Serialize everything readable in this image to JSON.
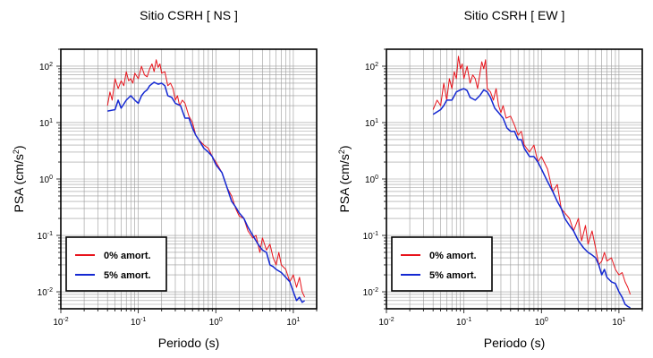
{
  "chart_data": [
    {
      "type": "line",
      "title": "Sitio CSRH [ NS ]",
      "xlabel": "Periodo (s)",
      "ylabel": "PSA (cm/s²)",
      "ylabel_main": "PSA (cm/s",
      "ylabel_sup": "2",
      "ylabel_end": ")",
      "xscale": "log",
      "yscale": "log",
      "xlim": [
        0.01,
        20
      ],
      "ylim": [
        0.005,
        200
      ],
      "grid": true,
      "legend_position": "bottom-left",
      "xticks": [
        {
          "base": "10",
          "exp": "-2"
        },
        {
          "base": "10",
          "exp": "-1"
        },
        {
          "base": "10",
          "exp": "0"
        },
        {
          "base": "10",
          "exp": "1"
        }
      ],
      "yticks": [
        {
          "base": "10",
          "exp": "-2"
        },
        {
          "base": "10",
          "exp": "-1"
        },
        {
          "base": "10",
          "exp": "0"
        },
        {
          "base": "10",
          "exp": "1"
        },
        {
          "base": "10",
          "exp": "2"
        }
      ],
      "series": [
        {
          "name": "0% amort.",
          "color": "#e8141c",
          "points": [
            [
              0.04,
              20
            ],
            [
              0.043,
              35
            ],
            [
              0.046,
              25
            ],
            [
              0.05,
              60
            ],
            [
              0.055,
              40
            ],
            [
              0.06,
              55
            ],
            [
              0.065,
              45
            ],
            [
              0.07,
              80
            ],
            [
              0.075,
              55
            ],
            [
              0.08,
              60
            ],
            [
              0.085,
              50
            ],
            [
              0.09,
              75
            ],
            [
              0.1,
              60
            ],
            [
              0.11,
              100
            ],
            [
              0.12,
              70
            ],
            [
              0.13,
              65
            ],
            [
              0.14,
              90
            ],
            [
              0.15,
              110
            ],
            [
              0.16,
              80
            ],
            [
              0.17,
              130
            ],
            [
              0.18,
              95
            ],
            [
              0.19,
              110
            ],
            [
              0.2,
              75
            ],
            [
              0.22,
              80
            ],
            [
              0.24,
              45
            ],
            [
              0.26,
              50
            ],
            [
              0.28,
              40
            ],
            [
              0.3,
              25
            ],
            [
              0.32,
              30
            ],
            [
              0.34,
              20
            ],
            [
              0.37,
              25
            ],
            [
              0.4,
              22
            ],
            [
              0.45,
              13
            ],
            [
              0.5,
              10
            ],
            [
              0.55,
              6
            ],
            [
              0.6,
              5
            ],
            [
              0.7,
              4
            ],
            [
              0.8,
              3.5
            ],
            [
              0.9,
              2.5
            ],
            [
              1.0,
              2
            ],
            [
              1.2,
              1.3
            ],
            [
              1.4,
              0.7
            ],
            [
              1.6,
              0.5
            ],
            [
              1.8,
              0.3
            ],
            [
              2.0,
              0.22
            ],
            [
              2.3,
              0.2
            ],
            [
              2.6,
              0.12
            ],
            [
              3.0,
              0.09
            ],
            [
              3.3,
              0.1
            ],
            [
              3.7,
              0.05
            ],
            [
              4.0,
              0.09
            ],
            [
              4.5,
              0.055
            ],
            [
              5.0,
              0.07
            ],
            [
              5.5,
              0.04
            ],
            [
              6.0,
              0.03
            ],
            [
              6.5,
              0.05
            ],
            [
              7.0,
              0.03
            ],
            [
              8.0,
              0.025
            ],
            [
              9.0,
              0.015
            ],
            [
              10.0,
              0.02
            ],
            [
              11.0,
              0.012
            ],
            [
              12.0,
              0.018
            ],
            [
              13.0,
              0.01
            ],
            [
              14.0,
              0.008
            ]
          ]
        },
        {
          "name": "5% amort.",
          "color": "#1428d2",
          "points": [
            [
              0.04,
              16
            ],
            [
              0.05,
              17
            ],
            [
              0.055,
              25
            ],
            [
              0.06,
              18
            ],
            [
              0.07,
              25
            ],
            [
              0.08,
              30
            ],
            [
              0.09,
              25
            ],
            [
              0.1,
              22
            ],
            [
              0.11,
              30
            ],
            [
              0.12,
              35
            ],
            [
              0.13,
              38
            ],
            [
              0.14,
              45
            ],
            [
              0.16,
              52
            ],
            [
              0.18,
              48
            ],
            [
              0.2,
              50
            ],
            [
              0.22,
              45
            ],
            [
              0.24,
              30
            ],
            [
              0.27,
              28
            ],
            [
              0.3,
              22
            ],
            [
              0.35,
              20
            ],
            [
              0.4,
              12
            ],
            [
              0.45,
              12
            ],
            [
              0.5,
              8
            ],
            [
              0.55,
              6
            ],
            [
              0.6,
              5
            ],
            [
              0.7,
              3.5
            ],
            [
              0.8,
              3
            ],
            [
              0.9,
              2.5
            ],
            [
              1.0,
              1.8
            ],
            [
              1.2,
              1.3
            ],
            [
              1.4,
              0.7
            ],
            [
              1.6,
              0.4
            ],
            [
              1.8,
              0.32
            ],
            [
              2.0,
              0.25
            ],
            [
              2.3,
              0.2
            ],
            [
              2.6,
              0.14
            ],
            [
              3.0,
              0.1
            ],
            [
              3.5,
              0.07
            ],
            [
              4.0,
              0.055
            ],
            [
              4.5,
              0.05
            ],
            [
              5.0,
              0.03
            ],
            [
              5.5,
              0.028
            ],
            [
              6.0,
              0.025
            ],
            [
              7.0,
              0.022
            ],
            [
              8.0,
              0.018
            ],
            [
              9.0,
              0.015
            ],
            [
              10.0,
              0.01
            ],
            [
              11.0,
              0.007
            ],
            [
              12.0,
              0.008
            ],
            [
              13.0,
              0.0065
            ],
            [
              14.0,
              0.007
            ]
          ]
        }
      ]
    },
    {
      "type": "line",
      "title": "Sitio CSRH [ EW ]",
      "xlabel": "Periodo (s)",
      "ylabel": "PSA (cm/s²)",
      "ylabel_main": "PSA (cm/s",
      "ylabel_sup": "2",
      "ylabel_end": ")",
      "xscale": "log",
      "yscale": "log",
      "xlim": [
        0.01,
        20
      ],
      "ylim": [
        0.005,
        200
      ],
      "grid": true,
      "legend_position": "bottom-left",
      "xticks": [
        {
          "base": "10",
          "exp": "-2"
        },
        {
          "base": "10",
          "exp": "-1"
        },
        {
          "base": "10",
          "exp": "0"
        },
        {
          "base": "10",
          "exp": "1"
        }
      ],
      "yticks": [
        {
          "base": "10",
          "exp": "-2"
        },
        {
          "base": "10",
          "exp": "-1"
        },
        {
          "base": "10",
          "exp": "0"
        },
        {
          "base": "10",
          "exp": "1"
        },
        {
          "base": "10",
          "exp": "2"
        }
      ],
      "series": [
        {
          "name": "0% amort.",
          "color": "#e8141c",
          "points": [
            [
              0.04,
              17
            ],
            [
              0.045,
              25
            ],
            [
              0.05,
              20
            ],
            [
              0.055,
              50
            ],
            [
              0.06,
              25
            ],
            [
              0.065,
              60
            ],
            [
              0.07,
              40
            ],
            [
              0.075,
              80
            ],
            [
              0.08,
              60
            ],
            [
              0.085,
              150
            ],
            [
              0.09,
              90
            ],
            [
              0.095,
              110
            ],
            [
              0.1,
              60
            ],
            [
              0.11,
              100
            ],
            [
              0.12,
              50
            ],
            [
              0.13,
              70
            ],
            [
              0.14,
              60
            ],
            [
              0.15,
              40
            ],
            [
              0.16,
              70
            ],
            [
              0.17,
              120
            ],
            [
              0.18,
              90
            ],
            [
              0.19,
              130
            ],
            [
              0.2,
              40
            ],
            [
              0.22,
              35
            ],
            [
              0.24,
              25
            ],
            [
              0.26,
              40
            ],
            [
              0.28,
              20
            ],
            [
              0.3,
              15
            ],
            [
              0.32,
              20
            ],
            [
              0.35,
              12
            ],
            [
              0.4,
              13
            ],
            [
              0.45,
              9
            ],
            [
              0.5,
              6
            ],
            [
              0.55,
              7
            ],
            [
              0.6,
              4
            ],
            [
              0.7,
              3
            ],
            [
              0.8,
              4
            ],
            [
              0.9,
              2
            ],
            [
              1.0,
              2.5
            ],
            [
              1.2,
              1.5
            ],
            [
              1.4,
              0.6
            ],
            [
              1.6,
              0.8
            ],
            [
              1.8,
              0.3
            ],
            [
              2.0,
              0.25
            ],
            [
              2.3,
              0.2
            ],
            [
              2.6,
              0.12
            ],
            [
              3.0,
              0.2
            ],
            [
              3.3,
              0.08
            ],
            [
              3.7,
              0.15
            ],
            [
              4.0,
              0.07
            ],
            [
              4.5,
              0.12
            ],
            [
              5.0,
              0.06
            ],
            [
              5.5,
              0.03
            ],
            [
              6.0,
              0.035
            ],
            [
              6.5,
              0.05
            ],
            [
              7.0,
              0.035
            ],
            [
              8.0,
              0.04
            ],
            [
              9.0,
              0.025
            ],
            [
              10.0,
              0.02
            ],
            [
              11.0,
              0.022
            ],
            [
              12.0,
              0.015
            ],
            [
              13.0,
              0.012
            ],
            [
              14.0,
              0.009
            ]
          ]
        },
        {
          "name": "5% amort.",
          "color": "#1428d2",
          "points": [
            [
              0.04,
              14
            ],
            [
              0.05,
              17
            ],
            [
              0.055,
              20
            ],
            [
              0.06,
              25
            ],
            [
              0.07,
              25
            ],
            [
              0.08,
              35
            ],
            [
              0.09,
              38
            ],
            [
              0.1,
              40
            ],
            [
              0.11,
              37
            ],
            [
              0.12,
              28
            ],
            [
              0.14,
              25
            ],
            [
              0.16,
              30
            ],
            [
              0.18,
              38
            ],
            [
              0.2,
              35
            ],
            [
              0.22,
              28
            ],
            [
              0.25,
              18
            ],
            [
              0.28,
              15
            ],
            [
              0.32,
              12
            ],
            [
              0.36,
              8
            ],
            [
              0.4,
              7
            ],
            [
              0.45,
              7
            ],
            [
              0.5,
              5
            ],
            [
              0.55,
              5
            ],
            [
              0.6,
              3.5
            ],
            [
              0.7,
              2.5
            ],
            [
              0.8,
              2.5
            ],
            [
              0.9,
              2
            ],
            [
              1.0,
              1.5
            ],
            [
              1.2,
              0.9
            ],
            [
              1.4,
              0.6
            ],
            [
              1.6,
              0.4
            ],
            [
              1.8,
              0.3
            ],
            [
              2.0,
              0.2
            ],
            [
              2.3,
              0.15
            ],
            [
              2.6,
              0.12
            ],
            [
              3.0,
              0.08
            ],
            [
              3.5,
              0.06
            ],
            [
              4.0,
              0.05
            ],
            [
              4.5,
              0.045
            ],
            [
              5.0,
              0.04
            ],
            [
              5.5,
              0.03
            ],
            [
              6.0,
              0.02
            ],
            [
              6.5,
              0.025
            ],
            [
              7.0,
              0.018
            ],
            [
              8.0,
              0.015
            ],
            [
              9.0,
              0.014
            ],
            [
              10.0,
              0.01
            ],
            [
              11.0,
              0.008
            ],
            [
              12.0,
              0.006
            ],
            [
              13.0,
              0.0055
            ],
            [
              14.0,
              0.0052
            ]
          ]
        }
      ]
    }
  ]
}
